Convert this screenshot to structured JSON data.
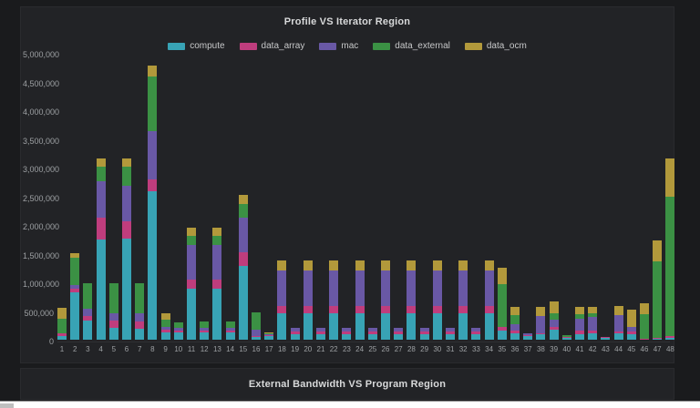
{
  "page": {
    "background": "#1a1b1d",
    "panel_background": "#222326"
  },
  "panels": {
    "profile": {
      "title": "Profile VS Iterator Region"
    },
    "bandwidth": {
      "title": "External Bandwidth VS Program Region"
    }
  },
  "chart_data": {
    "type": "bar",
    "stacked": true,
    "title": "Profile VS Iterator Region",
    "xlabel": "",
    "ylabel": "",
    "ylim": [
      0,
      5000000
    ],
    "grid": false,
    "legend_position": "top",
    "ytick_labels": [
      "0",
      "500,000",
      "1,000,000",
      "1,500,000",
      "2,000,000",
      "2,500,000",
      "3,000,000",
      "3,500,000",
      "4,000,000",
      "4,500,000",
      "5,000,000"
    ],
    "ytick_values": [
      0,
      500000,
      1000000,
      1500000,
      2000000,
      2500000,
      3000000,
      3500000,
      4000000,
      4500000,
      5000000
    ],
    "categories": [
      "1",
      "2",
      "3",
      "4",
      "5",
      "6",
      "7",
      "8",
      "9",
      "10",
      "11",
      "12",
      "13",
      "14",
      "15",
      "16",
      "17",
      "18",
      "19",
      "20",
      "21",
      "22",
      "23",
      "24",
      "25",
      "26",
      "27",
      "28",
      "29",
      "30",
      "31",
      "32",
      "33",
      "34",
      "35",
      "36",
      "37",
      "38",
      "39",
      "40",
      "41",
      "42",
      "43",
      "44",
      "45",
      "46",
      "47",
      "48"
    ],
    "series": [
      {
        "name": "compute",
        "color": "#38a3b5",
        "values": [
          63000,
          830000,
          330000,
          1746000,
          200000,
          1760000,
          195000,
          2587000,
          120000,
          130000,
          889000,
          130000,
          889000,
          130000,
          1281000,
          40000,
          60000,
          460000,
          90000,
          460000,
          90000,
          460000,
          90000,
          460000,
          90000,
          460000,
          90000,
          460000,
          90000,
          460000,
          90000,
          460000,
          90000,
          460000,
          159000,
          106000,
          60000,
          90000,
          170000,
          40000,
          90000,
          105000,
          30000,
          110000,
          90000,
          10000,
          15000,
          26000
        ]
      },
      {
        "name": "data_array",
        "color": "#bf3d7d",
        "values": [
          53000,
          65000,
          80000,
          380000,
          130000,
          300000,
          130000,
          206000,
          50000,
          35000,
          159000,
          35000,
          159000,
          35000,
          238000,
          16000,
          15000,
          130000,
          55000,
          130000,
          55000,
          130000,
          55000,
          130000,
          55000,
          130000,
          55000,
          130000,
          55000,
          130000,
          55000,
          130000,
          55000,
          130000,
          63000,
          53000,
          20000,
          25000,
          53000,
          15000,
          69000,
          60000,
          20000,
          30000,
          53000,
          8000,
          15000,
          37000
        ]
      },
      {
        "name": "mac",
        "color": "#6958a5",
        "values": [
          0,
          50000,
          130000,
          635000,
          130000,
          620000,
          130000,
          841000,
          55000,
          35000,
          603000,
          35000,
          603000,
          35000,
          608000,
          120000,
          20000,
          620000,
          60000,
          620000,
          60000,
          620000,
          60000,
          620000,
          60000,
          620000,
          60000,
          620000,
          60000,
          620000,
          60000,
          620000,
          60000,
          620000,
          0,
          116000,
          26000,
          300000,
          122000,
          0,
          212000,
          230000,
          0,
          290000,
          80000,
          0,
          0,
          0
        ]
      },
      {
        "name": "data_external",
        "color": "#3b9144",
        "values": [
          254000,
          490000,
          450000,
          254000,
          530000,
          340000,
          535000,
          952000,
          130000,
          100000,
          159000,
          110000,
          159000,
          110000,
          238000,
          300000,
          20000,
          0,
          0,
          0,
          0,
          0,
          0,
          0,
          0,
          0,
          0,
          0,
          0,
          0,
          0,
          0,
          0,
          0,
          741000,
          148000,
          0,
          0,
          116000,
          25000,
          74000,
          70000,
          0,
          0,
          0,
          425000,
          1333000,
          2434000
        ]
      },
      {
        "name": "data_ocm",
        "color": "#b2993b",
        "values": [
          185000,
          80000,
          0,
          143000,
          0,
          140000,
          0,
          190000,
          105000,
          0,
          148000,
          0,
          148000,
          0,
          159000,
          0,
          12000,
          175000,
          0,
          175000,
          0,
          175000,
          0,
          175000,
          0,
          175000,
          0,
          175000,
          0,
          175000,
          0,
          175000,
          0,
          175000,
          291000,
          143000,
          0,
          150000,
          210000,
          0,
          122000,
          100000,
          0,
          160000,
          300000,
          185000,
          370000,
          662000
        ]
      }
    ]
  }
}
